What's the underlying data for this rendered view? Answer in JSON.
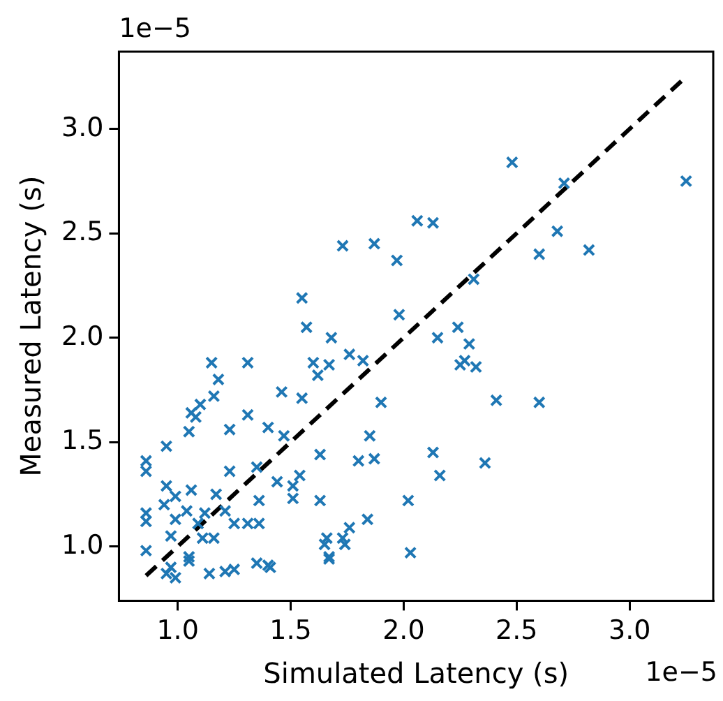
{
  "chart_data": {
    "type": "scatter",
    "xlabel": "Simulated Latency (s)",
    "ylabel": "Measured Latency (s)",
    "annotations": [
      "1e−5",
      "1e−5"
    ],
    "xlim": [
      0.74,
      3.37
    ],
    "ylim": [
      0.74,
      3.37
    ],
    "xticks": [
      {
        "value": 1,
        "label": "1.0"
      },
      {
        "value": 1.5,
        "label": "1.5"
      },
      {
        "value": 2,
        "label": "2.0"
      },
      {
        "value": 2.5,
        "label": "2.5"
      },
      {
        "value": 3,
        "label": "3.0"
      }
    ],
    "yticks": [
      {
        "value": 1,
        "label": "1.0"
      },
      {
        "value": 1.5,
        "label": "1.5"
      },
      {
        "value": 2,
        "label": "2.0"
      },
      {
        "value": 2.5,
        "label": "2.5"
      },
      {
        "value": 3,
        "label": "3.0"
      }
    ],
    "grid": false,
    "legend": false,
    "marker": "cross",
    "series": [
      {
        "type": "scatter",
        "color": "#1f77b4",
        "x": [
          1.15,
          1.31,
          1.18,
          1.46,
          1.55,
          1.16,
          1.1,
          1.06,
          1.08,
          1.31,
          1.05,
          1.23,
          1.4,
          1.47,
          0.95,
          0.86,
          0.86,
          1.23,
          1.35,
          1.44,
          1.51,
          1.54,
          0.95,
          1.06,
          0.99,
          1.17,
          1.36,
          1.51,
          0.86,
          0.94,
          1.04,
          1.12,
          1.21,
          0.86,
          0.99,
          1.25,
          1.31,
          1.36,
          1.09,
          0.97,
          1.11,
          1.16,
          0.86,
          1.05,
          0.97,
          0.99,
          0.95,
          1.14,
          1.21,
          1.25,
          1.35,
          1.41,
          1.05,
          1.4,
          1.67,
          2.03,
          1.65,
          1.74,
          2.06,
          2.13,
          1.73,
          1.87,
          1.97,
          2.31,
          1.98,
          2.24,
          2.15,
          2.29,
          1.68,
          2.27,
          2.32,
          2.25,
          1.76,
          1.82,
          1.67,
          1.62,
          1.9,
          2.41,
          1.85,
          1.63,
          1.8,
          1.87,
          2.13,
          2.36,
          2.16,
          1.63,
          2.02,
          1.84,
          1.76,
          1.73,
          1.66,
          1.67,
          1.55,
          1.57,
          1.6,
          2.48,
          2.71,
          3.25,
          2.68,
          2.6,
          2.82,
          2.6
        ],
        "values": [
          1.88,
          1.88,
          1.8,
          1.74,
          1.71,
          1.72,
          1.68,
          1.64,
          1.62,
          1.63,
          1.55,
          1.56,
          1.57,
          1.53,
          1.48,
          1.41,
          1.36,
          1.36,
          1.38,
          1.31,
          1.29,
          1.34,
          1.29,
          1.27,
          1.24,
          1.25,
          1.22,
          1.23,
          1.16,
          1.2,
          1.17,
          1.16,
          1.17,
          1.12,
          1.13,
          1.11,
          1.11,
          1.11,
          1.11,
          1.05,
          1.04,
          1.04,
          0.98,
          0.95,
          0.9,
          0.85,
          0.87,
          0.87,
          0.88,
          0.89,
          0.92,
          0.9,
          0.93,
          0.91,
          0.94,
          0.97,
          1.01,
          1.01,
          2.56,
          2.55,
          2.44,
          2.45,
          2.37,
          2.28,
          2.11,
          2.05,
          2.0,
          1.97,
          2.0,
          1.89,
          1.86,
          1.87,
          1.92,
          1.89,
          1.87,
          1.82,
          1.69,
          1.7,
          1.53,
          1.44,
          1.41,
          1.42,
          1.45,
          1.4,
          1.34,
          1.22,
          1.22,
          1.13,
          1.09,
          1.04,
          1.04,
          0.95,
          2.19,
          2.05,
          1.88,
          2.84,
          2.74,
          2.75,
          2.51,
          2.4,
          2.42,
          1.69
        ]
      },
      {
        "type": "line",
        "color": "#000000",
        "line_style": "dashed",
        "marker": "none",
        "x": [
          0.86,
          3.25
        ],
        "values": [
          0.86,
          3.25
        ]
      }
    ]
  }
}
